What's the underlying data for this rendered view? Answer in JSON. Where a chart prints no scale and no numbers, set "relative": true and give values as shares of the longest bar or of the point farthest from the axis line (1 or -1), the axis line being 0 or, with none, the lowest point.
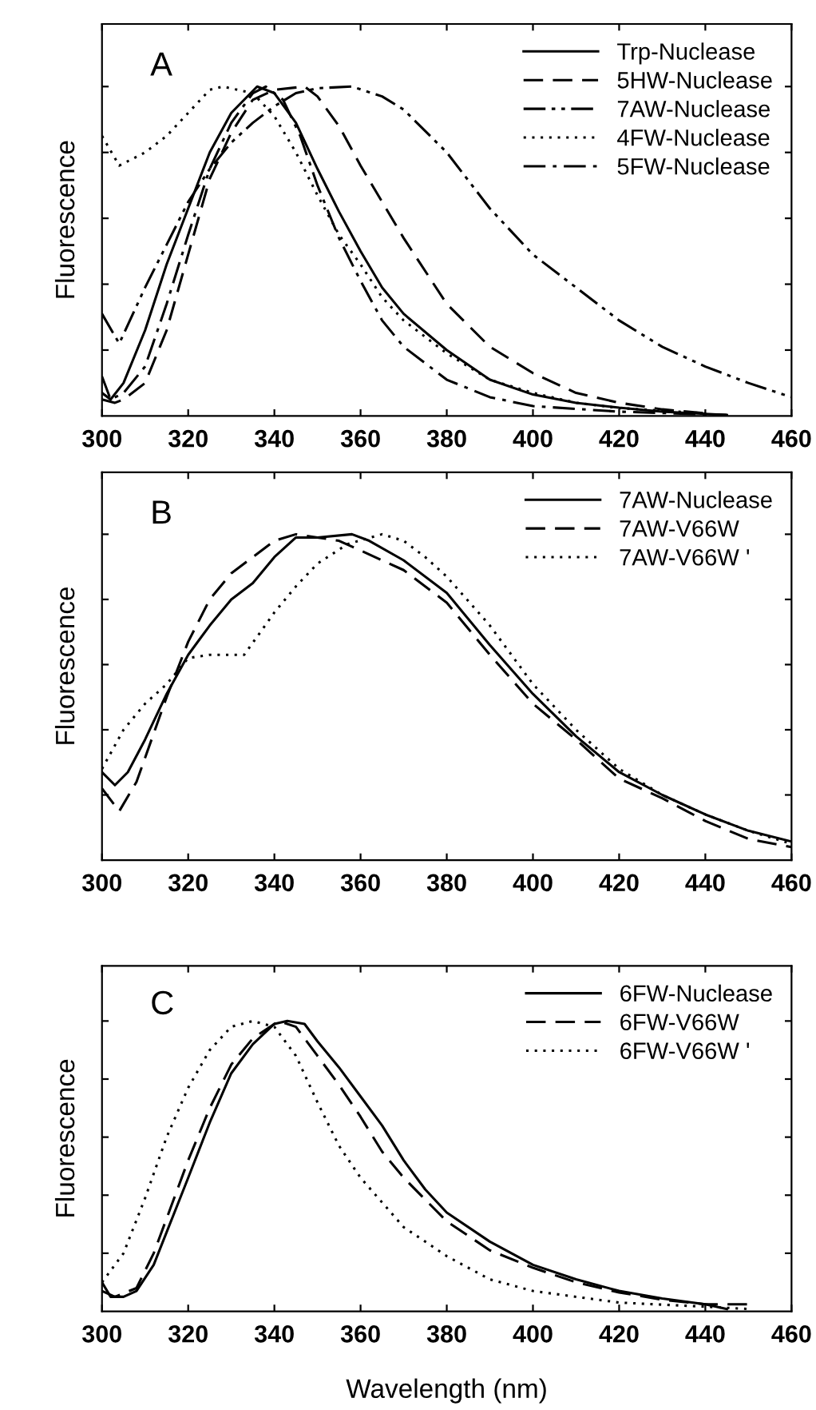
{
  "chart_data": [
    {
      "type": "line",
      "relative": true,
      "ylabel": "Fluorescence",
      "annotations": [
        "A"
      ],
      "xlim": [
        300,
        460
      ],
      "xticks": [
        300,
        320,
        340,
        360,
        380,
        400,
        420,
        440,
        460
      ],
      "tick_labels": "x",
      "legend": "top right",
      "grid": false,
      "marker": "none",
      "series": [
        {
          "name": "Trp-Nuclease",
          "color": "#000000",
          "line_style": "solid",
          "x": [
            300,
            302,
            305,
            310,
            315,
            320,
            325,
            330,
            336,
            340,
            345,
            350,
            355,
            360,
            365,
            370,
            380,
            390,
            400,
            410,
            420,
            430,
            445
          ],
          "values": [
            0.07,
            0.05,
            0.1,
            0.26,
            0.46,
            0.63,
            0.8,
            0.92,
            1.0,
            0.98,
            0.89,
            0.75,
            0.62,
            0.5,
            0.39,
            0.31,
            0.2,
            0.11,
            0.065,
            0.04,
            0.025,
            0.013,
            0.003
          ]
        },
        {
          "name": "5HW-Nuclease",
          "color": "#000000",
          "line_style": "dashed",
          "x": [
            300,
            303,
            305,
            310,
            315,
            320,
            325,
            330,
            335,
            340,
            347,
            350,
            355,
            360,
            365,
            370,
            380,
            390,
            400,
            410,
            420,
            430,
            440
          ],
          "values": [
            0.05,
            0.04,
            0.05,
            0.1,
            0.26,
            0.49,
            0.72,
            0.86,
            0.96,
            0.99,
            1.0,
            0.97,
            0.88,
            0.76,
            0.65,
            0.54,
            0.34,
            0.21,
            0.13,
            0.07,
            0.04,
            0.02,
            0.008
          ]
        },
        {
          "name": "7AW-Nuclease",
          "color": "#000000",
          "line_style": "dashdotdot",
          "x": [
            300,
            304,
            310,
            315,
            320,
            325,
            330,
            335,
            340,
            345,
            350,
            358,
            365,
            370,
            380,
            390,
            400,
            410,
            420,
            430,
            440,
            450,
            460
          ],
          "values": [
            0.31,
            0.22,
            0.39,
            0.52,
            0.65,
            0.75,
            0.83,
            0.89,
            0.94,
            0.98,
            0.995,
            1.0,
            0.97,
            0.93,
            0.8,
            0.63,
            0.49,
            0.39,
            0.29,
            0.21,
            0.15,
            0.1,
            0.057
          ]
        },
        {
          "name": "4FW-Nuclease",
          "color": "#000000",
          "line_style": "dotted",
          "x": [
            300,
            304,
            310,
            315,
            320,
            325,
            328,
            335,
            340,
            345,
            350,
            355,
            360,
            365,
            370,
            380,
            390,
            400,
            410,
            420,
            440
          ],
          "values": [
            0.85,
            0.76,
            0.8,
            0.85,
            0.92,
            0.99,
            1.0,
            0.98,
            0.91,
            0.8,
            0.67,
            0.55,
            0.46,
            0.36,
            0.29,
            0.19,
            0.11,
            0.07,
            0.04,
            0.024,
            0.008
          ]
        },
        {
          "name": "5FW-Nuclease",
          "color": "#000000",
          "line_style": "dashdot",
          "x": [
            300,
            302,
            305,
            310,
            315,
            320,
            325,
            330,
            335,
            338,
            342,
            346,
            350,
            355,
            360,
            365,
            370,
            380,
            390,
            400,
            420,
            445
          ],
          "values": [
            0.12,
            0.05,
            0.07,
            0.15,
            0.34,
            0.55,
            0.75,
            0.89,
            0.98,
            1.0,
            0.96,
            0.85,
            0.7,
            0.54,
            0.41,
            0.29,
            0.21,
            0.11,
            0.057,
            0.03,
            0.013,
            0.003
          ]
        }
      ]
    },
    {
      "type": "line",
      "relative": true,
      "ylabel": "Fluorescence",
      "annotations": [
        "B"
      ],
      "xlim": [
        300,
        460
      ],
      "xticks": [
        300,
        320,
        340,
        360,
        380,
        400,
        420,
        440,
        460
      ],
      "tick_labels": "x",
      "legend": "top right",
      "grid": false,
      "marker": "none",
      "series": [
        {
          "name": "7AW-Nuclease",
          "color": "#000000",
          "line_style": "solid",
          "x": [
            300,
            303,
            306,
            310,
            315,
            320,
            325,
            330,
            335,
            340,
            345,
            350,
            358,
            362,
            370,
            380,
            390,
            400,
            410,
            420,
            430,
            440,
            450,
            460
          ],
          "values": [
            0.27,
            0.23,
            0.27,
            0.37,
            0.51,
            0.63,
            0.72,
            0.8,
            0.85,
            0.93,
            0.99,
            0.99,
            1.0,
            0.98,
            0.92,
            0.82,
            0.66,
            0.51,
            0.38,
            0.27,
            0.2,
            0.14,
            0.09,
            0.057
          ]
        },
        {
          "name": "7AW-V66W",
          "color": "#000000",
          "line_style": "dashed",
          "x": [
            300,
            304,
            308,
            315,
            320,
            325,
            330,
            335,
            340,
            345,
            350,
            355,
            360,
            370,
            380,
            390,
            400,
            410,
            420,
            430,
            440,
            450,
            460
          ],
          "values": [
            0.22,
            0.15,
            0.24,
            0.5,
            0.67,
            0.8,
            0.88,
            0.93,
            0.98,
            1.0,
            0.99,
            0.98,
            0.95,
            0.89,
            0.79,
            0.63,
            0.48,
            0.37,
            0.25,
            0.19,
            0.12,
            0.065,
            0.04
          ]
        },
        {
          "name": "7AW-V66W '",
          "color": "#000000",
          "line_style": "dotted",
          "x": [
            300,
            305,
            310,
            315,
            320,
            325,
            333,
            340,
            345,
            350,
            357,
            365,
            370,
            375,
            380,
            390,
            400,
            410,
            420,
            430,
            440,
            450,
            460
          ],
          "values": [
            0.28,
            0.4,
            0.48,
            0.54,
            0.62,
            0.63,
            0.63,
            0.76,
            0.84,
            0.91,
            0.97,
            1.0,
            0.98,
            0.93,
            0.87,
            0.72,
            0.54,
            0.4,
            0.28,
            0.2,
            0.14,
            0.09,
            0.05
          ]
        }
      ]
    },
    {
      "type": "line",
      "relative": true,
      "ylabel": "Fluorescence",
      "xlabel": "Wavelength (nm)",
      "annotations": [
        "C"
      ],
      "xlim": [
        300,
        460
      ],
      "xticks": [
        300,
        320,
        340,
        360,
        380,
        400,
        420,
        440,
        460
      ],
      "tick_labels": "x",
      "legend": "top right",
      "grid": false,
      "marker": "none",
      "series": [
        {
          "name": "6FW-Nuclease",
          "color": "#000000",
          "line_style": "solid",
          "x": [
            300,
            302,
            305,
            308,
            312,
            316,
            320,
            325,
            330,
            335,
            340,
            343,
            347,
            350,
            355,
            360,
            365,
            370,
            375,
            380,
            390,
            400,
            410,
            420,
            430,
            440,
            445
          ],
          "values": [
            0.1,
            0.05,
            0.05,
            0.07,
            0.16,
            0.31,
            0.46,
            0.65,
            0.82,
            0.92,
            0.99,
            1.0,
            0.99,
            0.93,
            0.84,
            0.74,
            0.64,
            0.52,
            0.42,
            0.34,
            0.24,
            0.16,
            0.11,
            0.07,
            0.044,
            0.024,
            0.008
          ]
        },
        {
          "name": "6FW-V66W",
          "color": "#000000",
          "line_style": "dashed",
          "x": [
            300,
            303,
            308,
            312,
            316,
            320,
            325,
            330,
            335,
            341,
            345,
            350,
            355,
            360,
            365,
            370,
            380,
            390,
            400,
            410,
            420,
            430,
            440,
            450
          ],
          "values": [
            0.07,
            0.05,
            0.08,
            0.2,
            0.36,
            0.52,
            0.7,
            0.85,
            0.94,
            1.0,
            0.98,
            0.88,
            0.78,
            0.67,
            0.55,
            0.46,
            0.31,
            0.21,
            0.15,
            0.1,
            0.065,
            0.04,
            0.024,
            0.024
          ]
        },
        {
          "name": "6FW-V66W '",
          "color": "#000000",
          "line_style": "dotted",
          "x": [
            300,
            305,
            310,
            315,
            320,
            325,
            330,
            335,
            340,
            345,
            350,
            355,
            360,
            370,
            380,
            390,
            400,
            420,
            440,
            450
          ],
          "values": [
            0.1,
            0.2,
            0.39,
            0.6,
            0.77,
            0.9,
            0.98,
            1.0,
            0.98,
            0.88,
            0.72,
            0.57,
            0.46,
            0.29,
            0.19,
            0.11,
            0.07,
            0.03,
            0.016,
            0.008
          ]
        }
      ]
    }
  ]
}
